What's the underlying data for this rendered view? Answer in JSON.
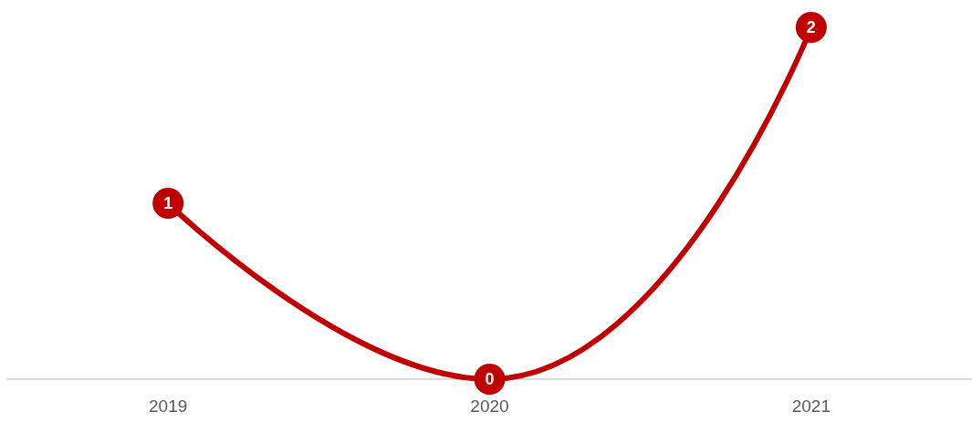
{
  "chart_data": {
    "type": "line",
    "categories": [
      "2019",
      "2020",
      "2021"
    ],
    "series": [
      {
        "color": "#c00000",
        "values": [
          1,
          0,
          2
        ]
      }
    ],
    "data_labels": true,
    "marker": "circle",
    "line_style": "solid",
    "grid": false,
    "tick_labels": "x"
  }
}
